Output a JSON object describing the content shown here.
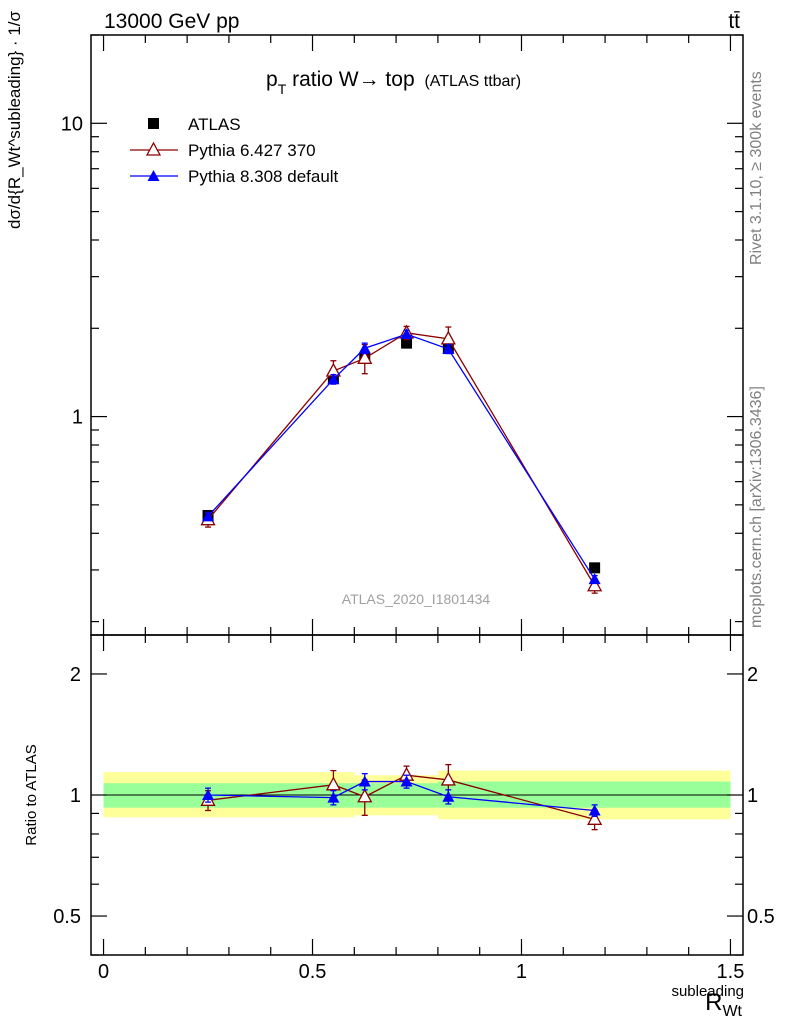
{
  "header": {
    "energy_label": "13000 GeV pp",
    "process_label": "tt̄",
    "rivet_label": "Rivet 3.1.10, ≥ 300k events",
    "mcplots_label": "mcplots.cern.ch [arXiv:1306.3436]",
    "analysis_label": "ATLAS_2020_I1801434"
  },
  "chart_data": [
    {
      "type": "scatter",
      "panel": "main",
      "title_main": "p",
      "title_sub": "T",
      "title_rest": " ratio W→ top",
      "title_small": "(ATLAS ttbar)",
      "ylabel": "dσ/d{R_Wt^subleading} · 1/σ",
      "yscale": "log",
      "ylim": [
        0.18,
        20
      ],
      "xlim": [
        -0.03,
        1.53
      ],
      "yticks": [
        {
          "value": 1,
          "label": "1"
        },
        {
          "value": 10,
          "label": "10"
        }
      ],
      "x": [
        0.25,
        0.55,
        0.625,
        0.725,
        0.825,
        1.175
      ],
      "series": [
        {
          "name": "ATLAS",
          "marker": "square",
          "color": "#000000",
          "values": [
            0.46,
            1.35,
            1.58,
            1.78,
            1.72,
            0.305
          ],
          "errors": [
            0.015,
            0.04,
            0.05,
            0.05,
            0.05,
            0.01
          ]
        },
        {
          "name": "Pythia 6.427 370",
          "marker": "open-triangle",
          "color": "#8b0000",
          "values": [
            0.445,
            1.43,
            1.58,
            1.93,
            1.84,
            0.265
          ],
          "errors": [
            0.025,
            0.12,
            0.18,
            0.1,
            0.18,
            0.015
          ]
        },
        {
          "name": "Pythia 8.308 default",
          "marker": "filled-triangle",
          "color": "#0000ff",
          "values": [
            0.457,
            1.34,
            1.71,
            1.91,
            1.7,
            0.279
          ],
          "errors": [
            0.012,
            0.05,
            0.07,
            0.06,
            0.06,
            0.008
          ]
        }
      ]
    },
    {
      "type": "scatter",
      "panel": "ratio",
      "ylabel": "Ratio to ATLAS",
      "xlabel_main": "R",
      "xlabel_sub": "Wt",
      "xlabel_sup": "subleading",
      "yscale": "log",
      "ylim": [
        0.4,
        2.5
      ],
      "xlim": [
        -0.03,
        1.53
      ],
      "xticks": [
        {
          "value": 0,
          "label": "0"
        },
        {
          "value": 0.5,
          "label": "0.5"
        },
        {
          "value": 1,
          "label": "1"
        },
        {
          "value": 1.5,
          "label": "1.5"
        }
      ],
      "yticks": [
        {
          "value": 0.5,
          "label": "0.5"
        },
        {
          "value": 1,
          "label": "1"
        },
        {
          "value": 2,
          "label": "2"
        }
      ],
      "bands": [
        {
          "x0": 0,
          "x1": 0.6,
          "yellow": [
            0.88,
            1.14
          ],
          "green": [
            0.93,
            1.07
          ]
        },
        {
          "x0": 0.6,
          "x1": 0.65,
          "yellow": [
            0.89,
            1.12
          ],
          "green": [
            0.93,
            1.07
          ]
        },
        {
          "x0": 0.65,
          "x1": 0.8,
          "yellow": [
            0.89,
            1.12
          ],
          "green": [
            0.93,
            1.07
          ]
        },
        {
          "x0": 0.8,
          "x1": 1.5,
          "yellow": [
            0.87,
            1.15
          ],
          "green": [
            0.93,
            1.08
          ]
        }
      ],
      "x": [
        0.25,
        0.55,
        0.625,
        0.725,
        0.825,
        1.175
      ],
      "series": [
        {
          "name": "Pythia 6.427 370",
          "marker": "open-triangle",
          "color": "#8b0000",
          "values": [
            0.97,
            1.06,
            0.99,
            1.12,
            1.09,
            0.87
          ],
          "errors": [
            0.055,
            0.09,
            0.1,
            0.06,
            0.1,
            0.05
          ]
        },
        {
          "name": "Pythia 8.308 default",
          "marker": "filled-triangle",
          "color": "#0000ff",
          "values": [
            1.0,
            0.985,
            1.08,
            1.08,
            0.99,
            0.915
          ],
          "errors": [
            0.04,
            0.04,
            0.05,
            0.04,
            0.04,
            0.03
          ]
        }
      ]
    }
  ]
}
